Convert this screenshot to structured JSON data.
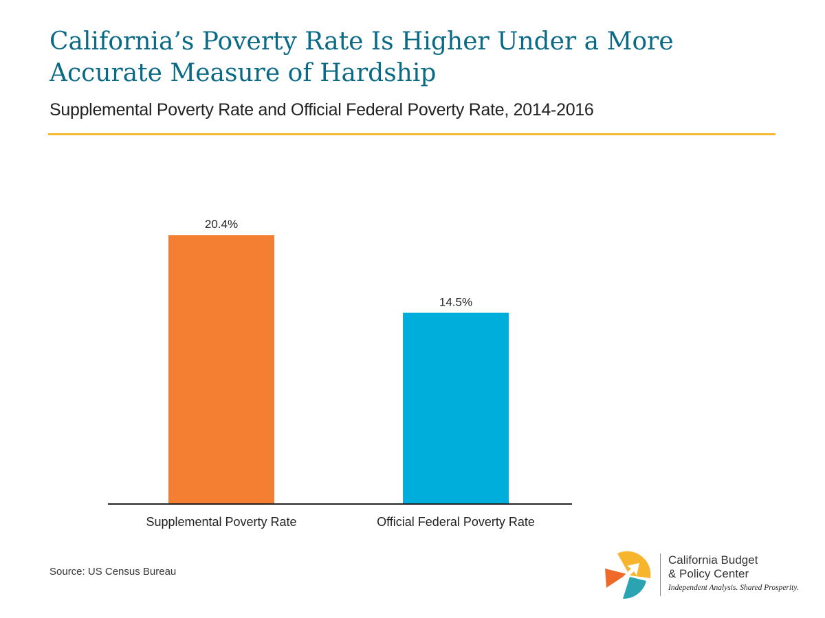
{
  "header": {
    "title_line1": "California’s Poverty Rate Is Higher Under a More",
    "title_line2": "Accurate Measure of Hardship",
    "subtitle": "Supplemental Poverty Rate and Official Federal Poverty Rate, 2014-2016"
  },
  "chart_data": {
    "type": "bar",
    "categories": [
      "Supplemental Poverty Rate",
      "Official Federal Poverty Rate"
    ],
    "values": [
      20.4,
      14.5
    ],
    "data_labels": [
      "20.4%",
      "14.5%"
    ],
    "colors": [
      "#f47f32",
      "#00aedb"
    ],
    "title": "",
    "xlabel": "",
    "ylabel": "",
    "ylim": [
      0,
      22.6
    ],
    "grid": false,
    "legend": "none"
  },
  "footer": {
    "source": "Source: US Census Bureau"
  },
  "logo": {
    "name_line1": "California Budget",
    "name_line2": "& Policy Center",
    "tagline": "Independent Analysis. Shared Prosperity.",
    "colors": {
      "yellow": "#f6b52c",
      "orange": "#ef6a2a",
      "teal": "#2aa3b2",
      "arrow": "#ffffff"
    }
  },
  "theme": {
    "title_color": "#0a6a86",
    "rule_color": "#f5b82e"
  }
}
